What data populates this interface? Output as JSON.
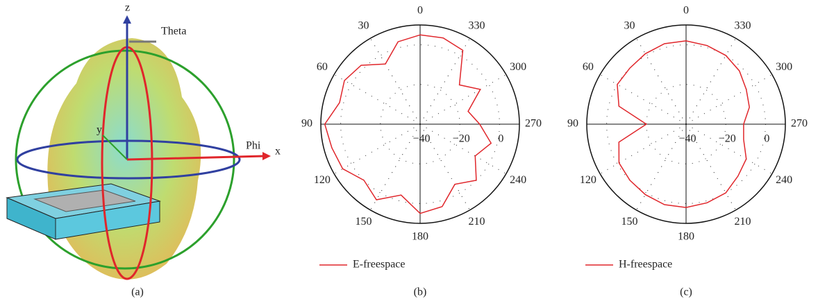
{
  "figure_a": {
    "axis_labels": {
      "z": "z",
      "theta": "Theta",
      "y": "y",
      "phi": "Phi",
      "x": "x"
    },
    "caption": "(a)"
  },
  "chart_data": [
    {
      "type": "polar",
      "caption": "(b)",
      "x": [
        0,
        15,
        30,
        45,
        60,
        75,
        90,
        105,
        120,
        135,
        150,
        165,
        180,
        195,
        210,
        225,
        240,
        255,
        270,
        285,
        300,
        315,
        330,
        345
      ],
      "series": [
        {
          "name": "E-freespace",
          "color": "#e0262b",
          "values": [
            5,
            3,
            -5,
            2,
            4,
            2,
            8,
            6,
            5,
            0,
            4,
            -3,
            5,
            3,
            -5,
            0,
            -8,
            -3,
            -10,
            -15,
            -5,
            -12,
            3,
            5
          ]
        }
      ],
      "rlim": [
        -40,
        10
      ],
      "rticks": [
        {
          "value": -40,
          "label": "−40"
        },
        {
          "value": -20,
          "label": "−20"
        },
        0
      ],
      "angle_ticks": [
        0,
        30,
        60,
        90,
        120,
        150,
        180,
        210,
        240,
        270,
        300,
        330
      ]
    },
    {
      "type": "polar",
      "caption": "(c)",
      "x": [
        0,
        15,
        30,
        45,
        60,
        75,
        90,
        105,
        120,
        135,
        150,
        165,
        180,
        195,
        210,
        225,
        240,
        255,
        270,
        285,
        300,
        315,
        330,
        345
      ],
      "series": [
        {
          "name": "H-freespace",
          "color": "#e0262b",
          "values": [
            2,
            2,
            1,
            0,
            0,
            -5,
            -20,
            -5,
            -1,
            0,
            1,
            2,
            2,
            1,
            0,
            -3,
            -5,
            -10,
            -11,
            -7,
            -5,
            -2,
            0,
            1
          ]
        }
      ],
      "rlim": [
        -40,
        10
      ],
      "rticks": [
        {
          "value": -40,
          "label": "−40"
        },
        {
          "value": -20,
          "label": "−20"
        },
        0
      ],
      "angle_ticks": [
        0,
        30,
        60,
        90,
        120,
        150,
        180,
        210,
        240,
        270,
        300,
        330
      ]
    }
  ]
}
